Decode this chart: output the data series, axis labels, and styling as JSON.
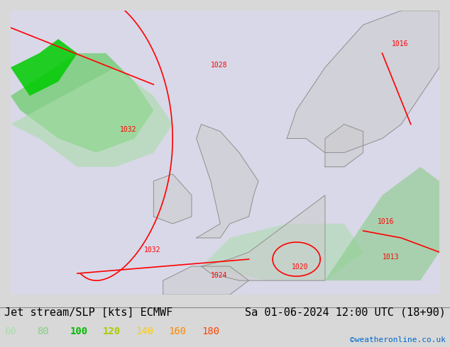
{
  "title_left": "Jet stream/SLP [kts] ECMWF",
  "title_right": "Sa 01-06-2024 12:00 UTC (18+90)",
  "credit": "©weatheronline.co.uk",
  "legend_values": [
    "60",
    "80",
    "100",
    "120",
    "140",
    "160",
    "180"
  ],
  "legend_colors": [
    "#aaddaa",
    "#88cc88",
    "#00bb00",
    "#aacc00",
    "#ffcc00",
    "#ff8800",
    "#ff4400"
  ],
  "bg_color": "#e8e8e8",
  "map_bg": "#f0f0f0",
  "isobar_color": "#ff0000",
  "isobar_labels": [
    "1016",
    "1032",
    "1032",
    "1028",
    "1024",
    "1020",
    "1016",
    "1013"
  ],
  "font_size_title": 11,
  "font_size_legend": 10
}
